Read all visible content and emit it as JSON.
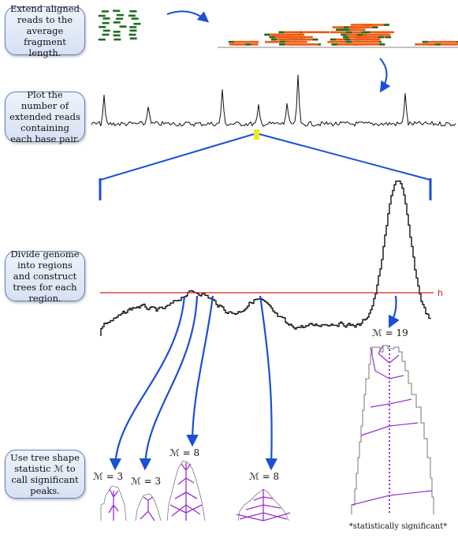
{
  "steps": [
    {
      "id": "extend",
      "text": "Extend aligned reads to the average fragment length."
    },
    {
      "id": "plot",
      "text": "Plot the number of extended reads containing each base pair."
    },
    {
      "id": "divide",
      "text": "Divide genome into regions and construct trees for each region."
    },
    {
      "id": "shape",
      "text": "Use tree shape statistic ℳ to call significant peaks."
    }
  ],
  "threshold_label": "h",
  "tree_stats": [
    {
      "label": "ℳ = 3"
    },
    {
      "label": "ℳ = 3"
    },
    {
      "label": "ℳ = 8"
    },
    {
      "label": "ℳ = 8"
    },
    {
      "label": "ℳ = 19"
    }
  ],
  "significance_note": "*statistically significant*",
  "colors": {
    "box_border": "#5b7fc4",
    "arrow": "#1a4fd6",
    "threshold": "#d2201a",
    "reads_short": "#1f6e1f",
    "reads_extended": "#ef5a12",
    "highlight": "#f2ea1a",
    "tree": "#9b2fd0"
  }
}
